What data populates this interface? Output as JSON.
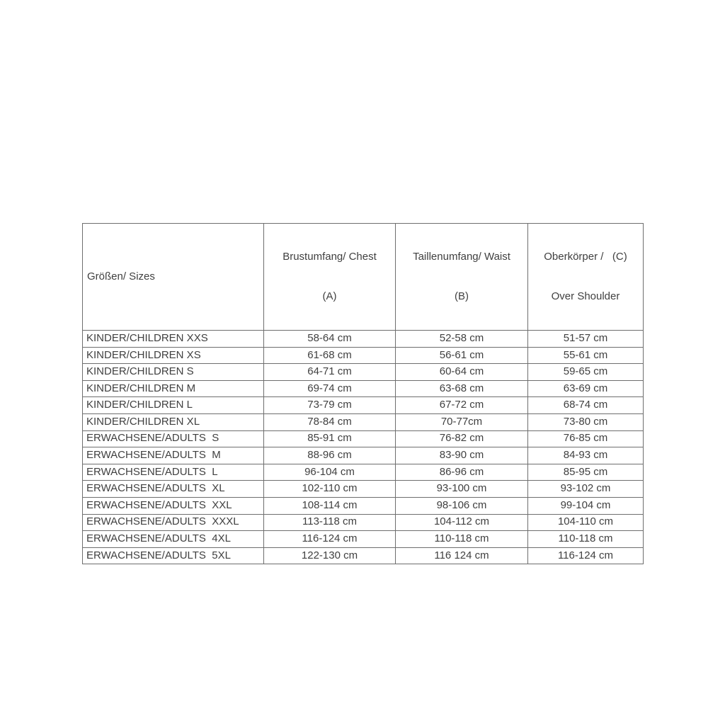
{
  "page": {
    "background_color": "#ffffff",
    "text_color": "#404040",
    "border_color": "#6e6e6e"
  },
  "table": {
    "header": {
      "col1": "Größen/ Sizes",
      "col2_line1": "Brustumfang/ Chest",
      "col2_line2": "(A)",
      "col3_line1": "Taillenumfang/ Waist",
      "col3_line2": "(B)",
      "col4_line1": "Oberkörper /   (C)",
      "col4_line2": "Over Shoulder"
    },
    "rows": [
      [
        "KINDER/CHILDREN XXS",
        "58-64 cm",
        "52-58 cm",
        "51-57 cm"
      ],
      [
        "KINDER/CHILDREN XS",
        "61-68 cm",
        "56-61 cm",
        "55-61 cm"
      ],
      [
        "KINDER/CHILDREN S",
        "64-71 cm",
        "60-64 cm",
        "59-65 cm"
      ],
      [
        "KINDER/CHILDREN M",
        "69-74 cm",
        "63-68 cm",
        "63-69 cm"
      ],
      [
        "KINDER/CHILDREN L",
        "73-79 cm",
        "67-72 cm",
        "68-74 cm"
      ],
      [
        "KINDER/CHILDREN XL",
        "78-84 cm",
        "70-77cm",
        "73-80 cm"
      ],
      [
        "ERWACHSENE/ADULTS  S",
        "85-91 cm",
        "76-82 cm",
        "76-85 cm"
      ],
      [
        "ERWACHSENE/ADULTS  M",
        "88-96 cm",
        "83-90 cm",
        "84-93 cm"
      ],
      [
        "ERWACHSENE/ADULTS  L",
        "96-104 cm",
        "86-96 cm",
        "85-95 cm"
      ],
      [
        "ERWACHSENE/ADULTS  XL",
        "102-110 cm",
        "93-100 cm",
        "93-102 cm"
      ],
      [
        "ERWACHSENE/ADULTS  XXL",
        "108-114 cm",
        "98-106 cm",
        "99-104 cm"
      ],
      [
        "ERWACHSENE/ADULTS  XXXL",
        "113-118 cm",
        "104-112 cm",
        "104-110 cm"
      ],
      [
        "ERWACHSENE/ADULTS  4XL",
        "116-124 cm",
        "110-118 cm",
        "110-118 cm"
      ],
      [
        "ERWACHSENE/ADULTS  5XL",
        "122-130 cm",
        "116 124 cm",
        "116-124 cm"
      ]
    ]
  },
  "chart_data": {
    "type": "table",
    "title": "Größen/ Sizes — garment size chart",
    "columns": [
      "Größen/ Sizes",
      "Brustumfang/ Chest (A)",
      "Taillenumfang/ Waist (B)",
      "Oberkörper / (C) Over Shoulder"
    ],
    "rows": [
      [
        "KINDER/CHILDREN XXS",
        "58-64 cm",
        "52-58 cm",
        "51-57 cm"
      ],
      [
        "KINDER/CHILDREN XS",
        "61-68 cm",
        "56-61 cm",
        "55-61 cm"
      ],
      [
        "KINDER/CHILDREN S",
        "64-71 cm",
        "60-64 cm",
        "59-65 cm"
      ],
      [
        "KINDER/CHILDREN M",
        "69-74 cm",
        "63-68 cm",
        "63-69 cm"
      ],
      [
        "KINDER/CHILDREN L",
        "73-79 cm",
        "67-72 cm",
        "68-74 cm"
      ],
      [
        "KINDER/CHILDREN XL",
        "78-84 cm",
        "70-77cm",
        "73-80 cm"
      ],
      [
        "ERWACHSENE/ADULTS S",
        "85-91 cm",
        "76-82 cm",
        "76-85 cm"
      ],
      [
        "ERWACHSENE/ADULTS M",
        "88-96 cm",
        "83-90 cm",
        "84-93 cm"
      ],
      [
        "ERWACHSENE/ADULTS L",
        "96-104 cm",
        "86-96 cm",
        "85-95 cm"
      ],
      [
        "ERWACHSENE/ADULTS XL",
        "102-110 cm",
        "93-100 cm",
        "93-102 cm"
      ],
      [
        "ERWACHSENE/ADULTS XXL",
        "108-114 cm",
        "98-106 cm",
        "99-104 cm"
      ],
      [
        "ERWACHSENE/ADULTS XXXL",
        "113-118 cm",
        "104-112 cm",
        "104-110 cm"
      ],
      [
        "ERWACHSENE/ADULTS 4XL",
        "116-124 cm",
        "110-118 cm",
        "110-118 cm"
      ],
      [
        "ERWACHSENE/ADULTS 5XL",
        "122-130 cm",
        "116 124 cm",
        "116-124 cm"
      ]
    ],
    "units": "cm",
    "grid": true,
    "notes": "Plain bordered data table on white background; first column left-aligned, measurement columns centered."
  }
}
